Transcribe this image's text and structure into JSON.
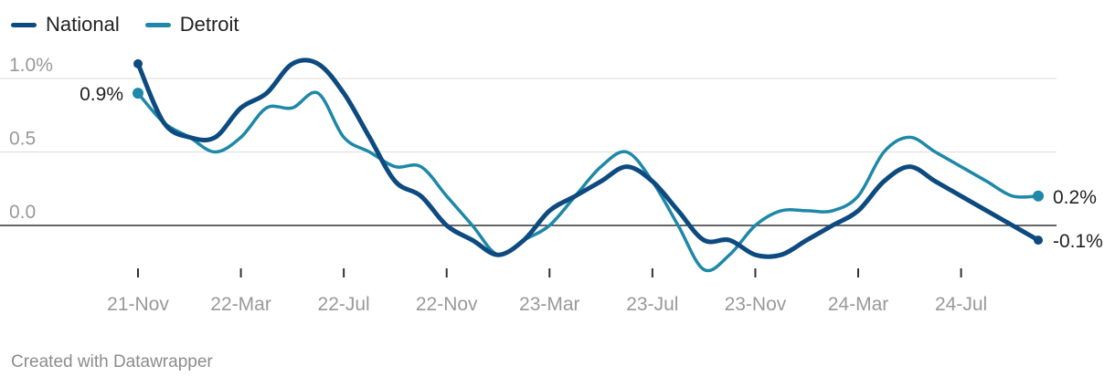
{
  "legend": {
    "items": [
      {
        "label": "National",
        "color": "#0d4a80"
      },
      {
        "label": "Detroit",
        "color": "#1e88a8"
      }
    ]
  },
  "footer": {
    "credit": "Created with Datawrapper"
  },
  "chart_data": {
    "type": "line",
    "title": "",
    "xlabel": "",
    "ylabel": "",
    "ylim": [
      -0.3,
      1.15
    ],
    "y_ticks": [
      1.0,
      0.5,
      0.0
    ],
    "y_tick_labels": [
      "1.0%",
      "0.5",
      "0.0"
    ],
    "x_ticks": [
      "21-Nov",
      "22-Mar",
      "22-Jul",
      "22-Nov",
      "23-Mar",
      "23-Jul",
      "23-Nov",
      "24-Mar",
      "24-Jul"
    ],
    "x": [
      "2021-11",
      "2021-12",
      "2022-01",
      "2022-02",
      "2022-03",
      "2022-04",
      "2022-05",
      "2022-06",
      "2022-07",
      "2022-08",
      "2022-09",
      "2022-10",
      "2022-11",
      "2022-12",
      "2023-01",
      "2023-02",
      "2023-03",
      "2023-04",
      "2023-05",
      "2023-06",
      "2023-07",
      "2023-08",
      "2023-09",
      "2023-10",
      "2023-11",
      "2023-12",
      "2024-01",
      "2024-02",
      "2024-03",
      "2024-04",
      "2024-05",
      "2024-06",
      "2024-07",
      "2024-08",
      "2024-09",
      "2024-10"
    ],
    "series": [
      {
        "name": "National",
        "color": "#0d4a80",
        "values": [
          1.1,
          0.7,
          0.6,
          0.6,
          0.8,
          0.9,
          1.1,
          1.1,
          0.9,
          0.6,
          0.3,
          0.2,
          0.0,
          -0.1,
          -0.2,
          -0.1,
          0.1,
          0.2,
          0.3,
          0.4,
          0.3,
          0.1,
          -0.1,
          -0.1,
          -0.2,
          -0.2,
          -0.1,
          0.0,
          0.1,
          0.3,
          0.4,
          0.3,
          0.2,
          0.1,
          0.0,
          -0.1
        ],
        "end_label": "-0.1%"
      },
      {
        "name": "Detroit",
        "color": "#1e88a8",
        "values": [
          0.9,
          0.7,
          0.6,
          0.5,
          0.6,
          0.8,
          0.8,
          0.9,
          0.6,
          0.5,
          0.4,
          0.4,
          0.2,
          0.0,
          -0.2,
          -0.1,
          0.0,
          0.2,
          0.4,
          0.5,
          0.3,
          0.0,
          -0.3,
          -0.2,
          0.0,
          0.1,
          0.1,
          0.1,
          0.2,
          0.5,
          0.6,
          0.5,
          0.4,
          0.3,
          0.2,
          0.2
        ],
        "start_label": "0.9%",
        "end_label": "0.2%"
      }
    ],
    "grid": true,
    "legend_position": "top-left"
  }
}
